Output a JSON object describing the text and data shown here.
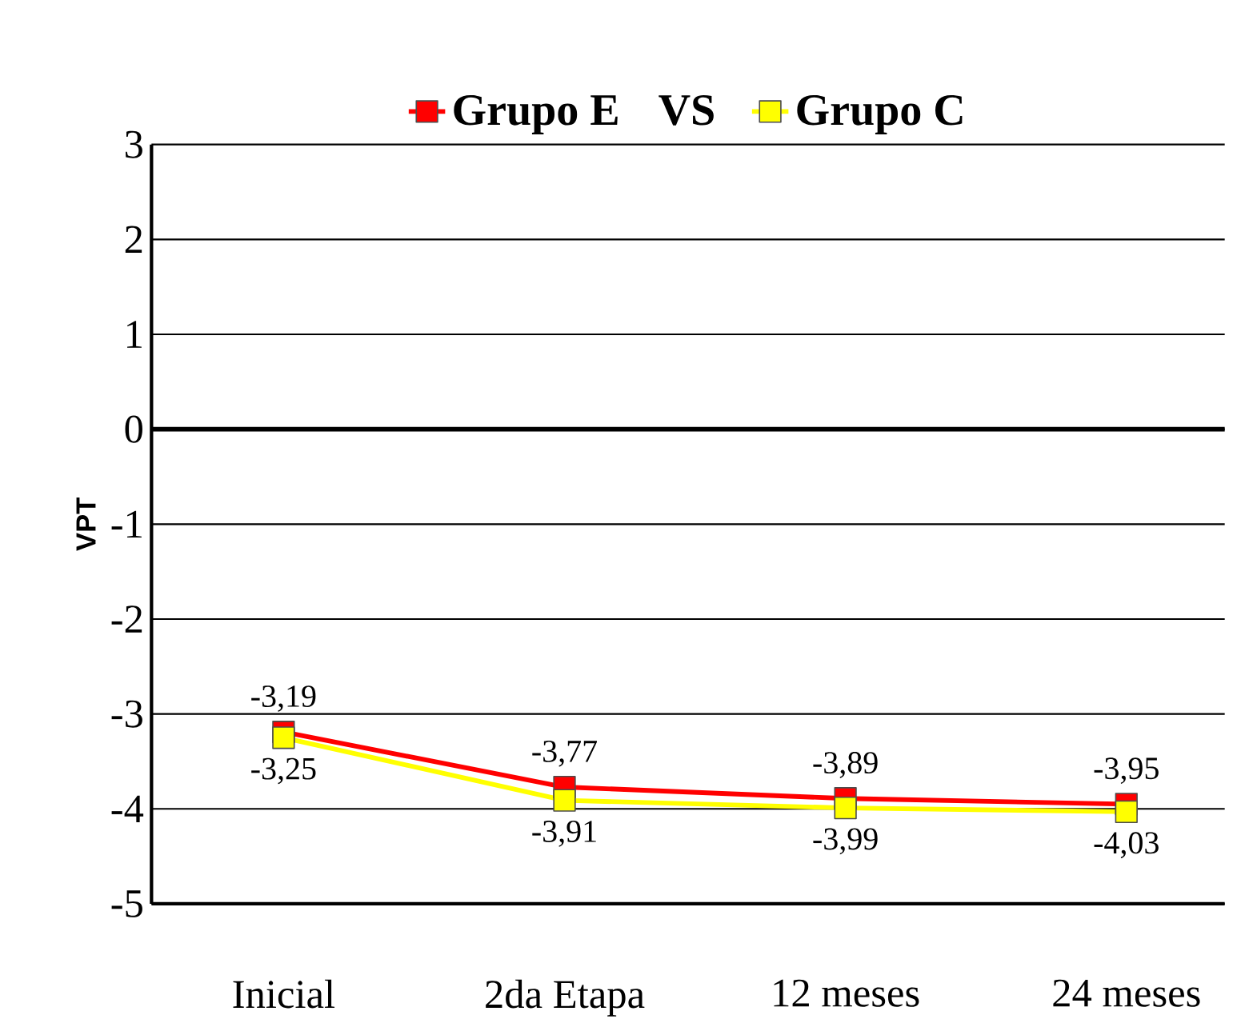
{
  "chart_data": {
    "type": "line",
    "ylabel": "VPT",
    "categories": [
      "Inicial",
      "2da Etapa",
      "12 meses",
      "24 meses"
    ],
    "series": [
      {
        "name": "Grupo E",
        "color": "#ff0000",
        "values": [
          -3.19,
          -3.77,
          -3.89,
          -3.95
        ],
        "value_labels": [
          "-3,19",
          "-3,77",
          "-3,89",
          "-3,95"
        ]
      },
      {
        "name": "Grupo C",
        "color": "#ffff00",
        "values": [
          -3.25,
          -3.91,
          -3.99,
          -4.03
        ],
        "value_labels": [
          "-3,25",
          "-3,91",
          "-3,99",
          "-4,03"
        ]
      }
    ],
    "annotations": [
      "VS"
    ],
    "ylim": [
      -5,
      3
    ],
    "yticks": [
      -5,
      -4,
      -3,
      -2,
      -1,
      0,
      1,
      2,
      3
    ],
    "ref_lines": [
      {
        "axis": "y",
        "value": 0
      }
    ],
    "grid": "y",
    "legend": "top",
    "marker": "square",
    "line_style": "solid",
    "data_labels": true
  }
}
